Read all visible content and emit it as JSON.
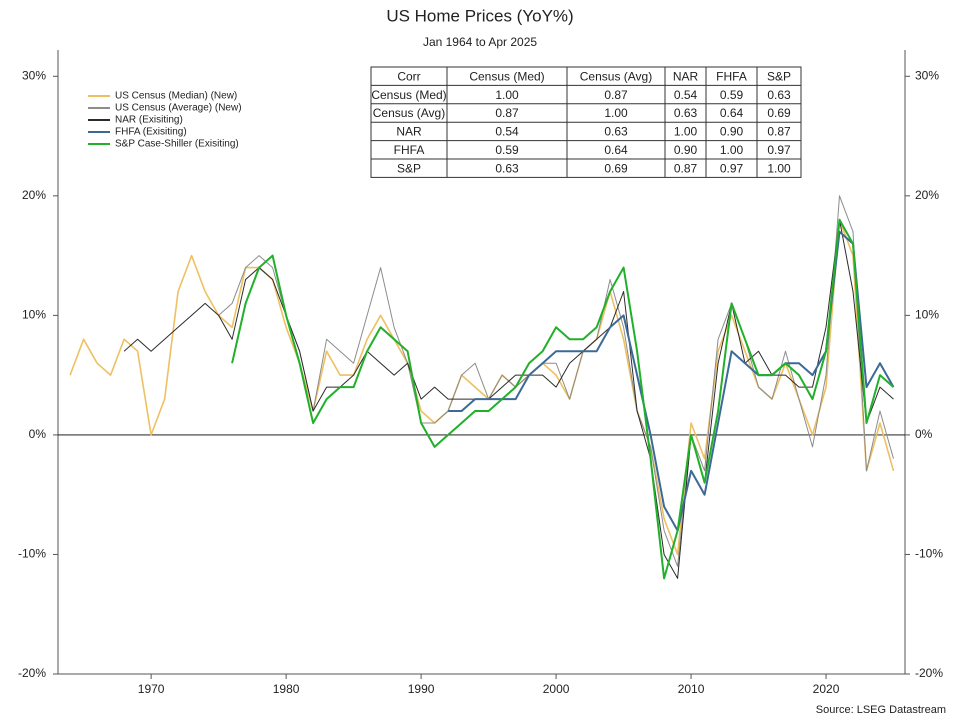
{
  "chart_data": {
    "type": "line",
    "title": "US Home Prices (YoY%)",
    "subtitle": "Jan 1964 to Apr 2025",
    "source": "Source: LSEG Datastream",
    "x": [
      1964,
      1965,
      1966,
      1967,
      1968,
      1969,
      1970,
      1971,
      1972,
      1973,
      1974,
      1975,
      1976,
      1977,
      1978,
      1979,
      1980,
      1981,
      1982,
      1983,
      1984,
      1985,
      1986,
      1987,
      1988,
      1989,
      1990,
      1991,
      1992,
      1993,
      1994,
      1995,
      1996,
      1997,
      1998,
      1999,
      2000,
      2001,
      2002,
      2003,
      2004,
      2005,
      2006,
      2007,
      2008,
      2009,
      2010,
      2011,
      2012,
      2013,
      2014,
      2015,
      2016,
      2017,
      2018,
      2019,
      2020,
      2021,
      2022,
      2023,
      2024,
      2025
    ],
    "xlim": [
      1963.1,
      2025.85
    ],
    "xticks": [
      1970,
      1980,
      1990,
      2000,
      2010,
      2020
    ],
    "ylim": [
      -20,
      32.2
    ],
    "yticks": [
      {
        "value": -20,
        "label": "-20%"
      },
      {
        "value": -10,
        "label": "-10%"
      },
      {
        "value": 0,
        "label": "0%"
      },
      {
        "value": 10,
        "label": "10%"
      },
      {
        "value": 20,
        "label": "20%"
      },
      {
        "value": 30,
        "label": "30%"
      }
    ],
    "y2lim": [
      -20,
      32.2
    ],
    "y2ticks": [
      {
        "value": -20,
        "label": "-20%"
      },
      {
        "value": -10,
        "label": "-10%"
      },
      {
        "value": 0,
        "label": "0%"
      },
      {
        "value": 10,
        "label": "10%"
      },
      {
        "value": 20,
        "label": "20%"
      },
      {
        "value": 30,
        "label": "30%"
      }
    ],
    "legend": "upper left",
    "series": [
      {
        "name": "US Census (Median) (New)",
        "color": "#eec062",
        "width": 1.6,
        "values": [
          5,
          8,
          6,
          5,
          8,
          7,
          0,
          3,
          12,
          15,
          12,
          10,
          9,
          14,
          14,
          13,
          9,
          6,
          2,
          7,
          5,
          5,
          8,
          10,
          8,
          6,
          2,
          1,
          2,
          5,
          4,
          3,
          5,
          4,
          5,
          6,
          5,
          3,
          7,
          8,
          12,
          8,
          2,
          -1,
          -7,
          -10,
          1,
          -2,
          7,
          10,
          7,
          4,
          3,
          6,
          3,
          0,
          4,
          18,
          15,
          -3,
          1,
          -3
        ]
      },
      {
        "name": "US Census (Average) (New)",
        "color": "#8c8c8c",
        "width": 1,
        "values": [
          null,
          null,
          null,
          null,
          null,
          null,
          null,
          null,
          null,
          null,
          null,
          10,
          11,
          14,
          15,
          14,
          10,
          7,
          2,
          8,
          7,
          6,
          10,
          14,
          9,
          6,
          1,
          1,
          2,
          5,
          6,
          3,
          5,
          4,
          5,
          6,
          6,
          3,
          7,
          8,
          13,
          9,
          2,
          -1,
          -8,
          -11,
          0,
          -3,
          8,
          11,
          8,
          4,
          3,
          7,
          3,
          -1,
          5,
          20,
          17,
          -3,
          2,
          -2
        ]
      },
      {
        "name": "NAR (Exisiting)",
        "color": "#2b2b2b",
        "width": 1,
        "values": [
          null,
          null,
          null,
          null,
          7,
          8,
          7,
          8,
          9,
          10,
          11,
          10,
          8,
          13,
          14,
          13,
          10,
          7,
          2,
          4,
          4,
          5,
          7,
          6,
          5,
          6,
          3,
          4,
          3,
          3,
          3,
          3,
          4,
          5,
          5,
          5,
          4,
          6,
          7,
          8,
          9,
          12,
          2,
          -2,
          -10,
          -12,
          0,
          -4,
          6,
          11,
          6,
          7,
          5,
          5,
          4,
          4,
          9,
          18,
          12,
          1,
          4,
          3
        ]
      },
      {
        "name": "FHFA (Exisiting)",
        "color": "#3c6a96",
        "width": 2,
        "values": [
          null,
          null,
          null,
          null,
          null,
          null,
          null,
          null,
          null,
          null,
          null,
          null,
          null,
          null,
          null,
          null,
          null,
          null,
          null,
          null,
          null,
          null,
          null,
          null,
          null,
          null,
          null,
          null,
          2,
          2,
          3,
          3,
          3,
          3,
          5,
          6,
          7,
          7,
          7,
          7,
          9,
          10,
          5,
          0,
          -6,
          -8,
          -3,
          -5,
          1,
          7,
          6,
          5,
          5,
          6,
          6,
          5,
          7,
          17,
          16,
          4,
          6,
          4
        ]
      },
      {
        "name": "S&P Case-Shiller (Exisiting)",
        "color": "#21b02a",
        "width": 2,
        "values": [
          null,
          null,
          null,
          null,
          null,
          null,
          null,
          null,
          null,
          null,
          null,
          null,
          6,
          11,
          14,
          15,
          10,
          6,
          1,
          3,
          4,
          4,
          7,
          9,
          8,
          7,
          1,
          -1,
          0,
          1,
          2,
          2,
          3,
          4,
          6,
          7,
          9,
          8,
          8,
          9,
          12,
          14,
          7,
          -2,
          -12,
          -8,
          0,
          -4,
          2,
          11,
          8,
          5,
          5,
          6,
          5,
          3,
          7,
          18,
          16,
          1,
          5,
          4
        ]
      }
    ],
    "table": {
      "header": [
        "Corr",
        "Census (Med)",
        "Census (Avg)",
        "NAR",
        "FHFA",
        "S&P"
      ],
      "rows": [
        [
          "Census (Med)",
          "1.00",
          "0.87",
          "0.54",
          "0.59",
          "0.63"
        ],
        [
          "Census (Avg)",
          "0.87",
          "1.00",
          "0.63",
          "0.64",
          "0.69"
        ],
        [
          "NAR",
          "0.54",
          "0.63",
          "1.00",
          "0.90",
          "0.87"
        ],
        [
          "FHFA",
          "0.59",
          "0.64",
          "0.90",
          "1.00",
          "0.97"
        ],
        [
          "S&P",
          "0.63",
          "0.69",
          "0.87",
          "0.97",
          "1.00"
        ]
      ]
    }
  }
}
